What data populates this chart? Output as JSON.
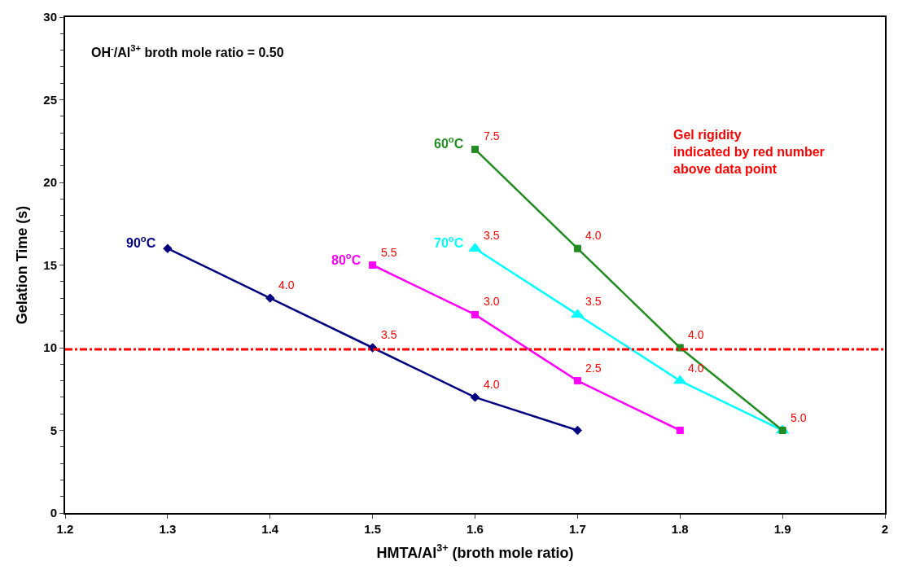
{
  "chart_data": {
    "type": "line",
    "xlabel": "HMTA/Al$^{3+}$ (broth mole ratio)",
    "ylabel": "Gelation Time (s)",
    "xlim": [
      1.2,
      2
    ],
    "xticks": [
      {
        "value": 1.2,
        "label": "1.2"
      },
      1.3,
      1.4,
      1.5,
      1.6,
      1.7,
      1.8,
      1.9,
      2
    ],
    "ylim": [
      0,
      30
    ],
    "yticks": [
      0,
      5,
      10,
      15,
      20,
      25,
      30
    ],
    "series": [
      {
        "name": "90$^{o}$C",
        "color": "#000080",
        "marker": "diamond",
        "x": [
          1.3,
          1.4,
          1.5,
          1.6,
          1.7
        ],
        "values": [
          16,
          13,
          10,
          7,
          5
        ]
      },
      {
        "name": "80$^{o}$C",
        "color": "#ff00ff",
        "marker": "square",
        "x": [
          1.5,
          1.6,
          1.7,
          1.8
        ],
        "values": [
          15,
          12,
          8,
          5
        ]
      },
      {
        "name": "70$^{o}$C",
        "color": "#00ffff",
        "marker": "triangle",
        "x": [
          1.6,
          1.7,
          1.8,
          1.9
        ],
        "values": [
          16,
          12,
          8,
          5
        ]
      },
      {
        "name": "60$^{o}$C",
        "color": "#228b22",
        "marker": "square",
        "x": [
          1.6,
          1.7,
          1.8,
          1.9
        ],
        "values": [
          22,
          16,
          10,
          5
        ]
      }
    ],
    "ref_lines": [
      {
        "axis": "y",
        "value": 9.9,
        "color": "#ff0000",
        "line_style": "dashdot"
      }
    ],
    "annotations": [
      "OH$^{-}$/Al$^{3+}$ broth mole ratio = 0.50",
      "Gel rigidity\nindicated by red number\nabove data point",
      {
        "text": "4.0",
        "x": 1.4,
        "y": 13
      },
      {
        "text": "3.5",
        "x": 1.5,
        "y": 10
      },
      {
        "text": "4.0",
        "x": 1.6,
        "y": 7
      },
      {
        "text": "5.5",
        "x": 1.5,
        "y": 15
      },
      {
        "text": "3.0",
        "x": 1.6,
        "y": 12
      },
      {
        "text": "2.5",
        "x": 1.7,
        "y": 8
      },
      {
        "text": "3.5",
        "x": 1.6,
        "y": 16
      },
      {
        "text": "3.5",
        "x": 1.7,
        "y": 12
      },
      {
        "text": "4.0",
        "x": 1.8,
        "y": 8
      },
      {
        "text": "7.5",
        "x": 1.6,
        "y": 22
      },
      {
        "text": "4.0",
        "x": 1.7,
        "y": 16
      },
      {
        "text": "4.0",
        "x": 1.8,
        "y": 10
      },
      {
        "text": "5.0",
        "x": 1.9,
        "y": 5
      }
    ]
  }
}
